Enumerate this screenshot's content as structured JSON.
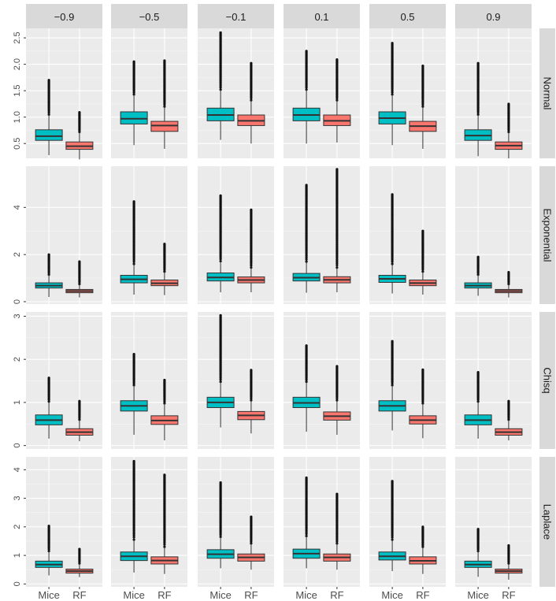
{
  "chart_data": {
    "type": "boxplot",
    "title": "",
    "xlabel": "",
    "ylabel": "",
    "facet_cols": [
      "−0.9",
      "−0.5",
      "−0.1",
      "0.1",
      "0.5",
      "0.9"
    ],
    "facet_rows": [
      "Normal",
      "Exponential",
      "Chisq",
      "Laplace"
    ],
    "categories": [
      "Mice",
      "RF"
    ],
    "colors": {
      "Mice": "#00BFC4",
      "RF": "#F8766D"
    },
    "grid": true,
    "legend": "none",
    "rows": [
      {
        "name": "Normal",
        "ylim": [
          0.22,
          2.68
        ],
        "yticks": [
          0.5,
          1.0,
          1.5,
          2.0,
          2.5
        ],
        "yticklabels": [
          "0.5",
          "1.0",
          "1.5",
          "2.0",
          "2.5"
        ],
        "panels": [
          {
            "Mice": {
              "min": 0.28,
              "q1": 0.56,
              "median": 0.64,
              "q3": 0.76,
              "max": 1.05,
              "out_max": 1.7
            },
            "RF": {
              "min": 0.2,
              "q1": 0.39,
              "median": 0.45,
              "q3": 0.53,
              "max": 0.72,
              "out_max": 1.09
            }
          },
          {
            "Mice": {
              "min": 0.47,
              "q1": 0.87,
              "median": 0.97,
              "q3": 1.1,
              "max": 1.43,
              "out_max": 2.05
            },
            "RF": {
              "min": 0.4,
              "q1": 0.73,
              "median": 0.84,
              "q3": 0.92,
              "max": 1.2,
              "out_max": 2.07
            }
          },
          {
            "Mice": {
              "min": 0.57,
              "q1": 0.93,
              "median": 1.04,
              "q3": 1.17,
              "max": 1.52,
              "out_max": 2.6
            },
            "RF": {
              "min": 0.5,
              "q1": 0.84,
              "median": 0.93,
              "q3": 1.04,
              "max": 1.32,
              "out_max": 2.02
            }
          },
          {
            "Mice": {
              "min": 0.5,
              "q1": 0.93,
              "median": 1.04,
              "q3": 1.17,
              "max": 1.52,
              "out_max": 2.25
            },
            "RF": {
              "min": 0.52,
              "q1": 0.84,
              "median": 0.93,
              "q3": 1.04,
              "max": 1.32,
              "out_max": 2.09
            }
          },
          {
            "Mice": {
              "min": 0.47,
              "q1": 0.87,
              "median": 0.98,
              "q3": 1.1,
              "max": 1.43,
              "out_max": 2.4
            },
            "RF": {
              "min": 0.4,
              "q1": 0.73,
              "median": 0.83,
              "q3": 0.92,
              "max": 1.2,
              "out_max": 1.97
            }
          },
          {
            "Mice": {
              "min": 0.26,
              "q1": 0.56,
              "median": 0.65,
              "q3": 0.76,
              "max": 1.05,
              "out_max": 2.02
            },
            "RF": {
              "min": 0.22,
              "q1": 0.39,
              "median": 0.46,
              "q3": 0.53,
              "max": 0.72,
              "out_max": 1.25
            }
          }
        ]
      },
      {
        "name": "Exponential",
        "ylim": [
          -0.1,
          5.75
        ],
        "yticks": [
          0,
          2,
          4
        ],
        "yticklabels": [
          "0",
          "2",
          "4"
        ],
        "panels": [
          {
            "Mice": {
              "min": 0.2,
              "q1": 0.58,
              "median": 0.68,
              "q3": 0.8,
              "max": 1.15,
              "out_max": 2.0
            },
            "RF": {
              "min": 0.18,
              "q1": 0.38,
              "median": 0.45,
              "q3": 0.52,
              "max": 0.75,
              "out_max": 1.7
            }
          },
          {
            "Mice": {
              "min": 0.3,
              "q1": 0.8,
              "median": 0.95,
              "q3": 1.12,
              "max": 1.6,
              "out_max": 4.25
            },
            "RF": {
              "min": 0.28,
              "q1": 0.68,
              "median": 0.78,
              "q3": 0.92,
              "max": 1.28,
              "out_max": 2.45
            }
          },
          {
            "Mice": {
              "min": 0.4,
              "q1": 0.88,
              "median": 1.03,
              "q3": 1.22,
              "max": 1.72,
              "out_max": 4.5
            },
            "RF": {
              "min": 0.4,
              "q1": 0.8,
              "median": 0.92,
              "q3": 1.05,
              "max": 1.45,
              "out_max": 3.9
            }
          },
          {
            "Mice": {
              "min": 0.38,
              "q1": 0.88,
              "median": 1.02,
              "q3": 1.2,
              "max": 1.7,
              "out_max": 4.95
            },
            "RF": {
              "min": 0.4,
              "q1": 0.8,
              "median": 0.93,
              "q3": 1.06,
              "max": 1.45,
              "out_max": 5.62
            }
          },
          {
            "Mice": {
              "min": 0.35,
              "q1": 0.82,
              "median": 0.97,
              "q3": 1.12,
              "max": 1.6,
              "out_max": 4.55
            },
            "RF": {
              "min": 0.3,
              "q1": 0.68,
              "median": 0.79,
              "q3": 0.92,
              "max": 1.28,
              "out_max": 3.0
            }
          },
          {
            "Mice": {
              "min": 0.25,
              "q1": 0.58,
              "median": 0.68,
              "q3": 0.8,
              "max": 1.15,
              "out_max": 1.9
            },
            "RF": {
              "min": 0.18,
              "q1": 0.38,
              "median": 0.45,
              "q3": 0.52,
              "max": 0.75,
              "out_max": 1.25
            }
          }
        ]
      },
      {
        "name": "Chisq",
        "ylim": [
          -0.08,
          3.1
        ],
        "yticks": [
          0,
          1,
          2,
          3
        ],
        "yticklabels": [
          "0",
          "1",
          "2",
          "3"
        ],
        "panels": [
          {
            "Mice": {
              "min": 0.16,
              "q1": 0.48,
              "median": 0.59,
              "q3": 0.71,
              "max": 1.02,
              "out_max": 1.57
            },
            "RF": {
              "min": 0.1,
              "q1": 0.24,
              "median": 0.31,
              "q3": 0.39,
              "max": 0.6,
              "out_max": 1.03
            }
          },
          {
            "Mice": {
              "min": 0.25,
              "q1": 0.8,
              "median": 0.92,
              "q3": 1.04,
              "max": 1.4,
              "out_max": 2.12
            },
            "RF": {
              "min": 0.12,
              "q1": 0.49,
              "median": 0.58,
              "q3": 0.69,
              "max": 0.98,
              "out_max": 1.52
            }
          },
          {
            "Mice": {
              "min": 0.42,
              "q1": 0.88,
              "median": 1.0,
              "q3": 1.12,
              "max": 1.48,
              "out_max": 3.02
            },
            "RF": {
              "min": 0.28,
              "q1": 0.6,
              "median": 0.7,
              "q3": 0.79,
              "max": 1.05,
              "out_max": 1.75
            }
          },
          {
            "Mice": {
              "min": 0.32,
              "q1": 0.88,
              "median": 0.99,
              "q3": 1.12,
              "max": 1.48,
              "out_max": 2.32
            },
            "RF": {
              "min": 0.25,
              "q1": 0.59,
              "median": 0.68,
              "q3": 0.78,
              "max": 1.05,
              "out_max": 1.84
            }
          },
          {
            "Mice": {
              "min": 0.35,
              "q1": 0.8,
              "median": 0.92,
              "q3": 1.04,
              "max": 1.4,
              "out_max": 2.42
            },
            "RF": {
              "min": 0.17,
              "q1": 0.5,
              "median": 0.59,
              "q3": 0.69,
              "max": 0.98,
              "out_max": 1.76
            }
          },
          {
            "Mice": {
              "min": 0.16,
              "q1": 0.48,
              "median": 0.59,
              "q3": 0.71,
              "max": 1.02,
              "out_max": 1.7
            },
            "RF": {
              "min": 0.12,
              "q1": 0.24,
              "median": 0.31,
              "q3": 0.39,
              "max": 0.6,
              "out_max": 1.03
            }
          }
        ]
      },
      {
        "name": "Laplace",
        "ylim": [
          -0.1,
          4.45
        ],
        "yticks": [
          0,
          1,
          2,
          3,
          4
        ],
        "yticklabels": [
          "0",
          "1",
          "2",
          "3",
          "4"
        ],
        "panels": [
          {
            "Mice": {
              "min": 0.3,
              "q1": 0.58,
              "median": 0.68,
              "q3": 0.8,
              "max": 1.15,
              "out_max": 2.03
            },
            "RF": {
              "min": 0.24,
              "q1": 0.38,
              "median": 0.45,
              "q3": 0.52,
              "max": 0.72,
              "out_max": 1.22
            }
          },
          {
            "Mice": {
              "min": 0.4,
              "q1": 0.82,
              "median": 0.97,
              "q3": 1.12,
              "max": 1.55,
              "out_max": 4.3
            },
            "RF": {
              "min": 0.35,
              "q1": 0.7,
              "median": 0.82,
              "q3": 0.95,
              "max": 1.3,
              "out_max": 3.82
            }
          },
          {
            "Mice": {
              "min": 0.55,
              "q1": 0.9,
              "median": 1.04,
              "q3": 1.2,
              "max": 1.65,
              "out_max": 3.55
            },
            "RF": {
              "min": 0.5,
              "q1": 0.8,
              "median": 0.93,
              "q3": 1.05,
              "max": 1.42,
              "out_max": 2.35
            }
          },
          {
            "Mice": {
              "min": 0.55,
              "q1": 0.9,
              "median": 1.06,
              "q3": 1.22,
              "max": 1.68,
              "out_max": 3.72
            },
            "RF": {
              "min": 0.5,
              "q1": 0.8,
              "median": 0.93,
              "q3": 1.05,
              "max": 1.42,
              "out_max": 3.15
            }
          },
          {
            "Mice": {
              "min": 0.45,
              "q1": 0.84,
              "median": 0.97,
              "q3": 1.12,
              "max": 1.55,
              "out_max": 3.6
            },
            "RF": {
              "min": 0.35,
              "q1": 0.7,
              "median": 0.81,
              "q3": 0.95,
              "max": 1.3,
              "out_max": 2.0
            }
          },
          {
            "Mice": {
              "min": 0.25,
              "q1": 0.58,
              "median": 0.68,
              "q3": 0.8,
              "max": 1.15,
              "out_max": 1.92
            },
            "RF": {
              "min": 0.15,
              "q1": 0.38,
              "median": 0.45,
              "q3": 0.52,
              "max": 0.72,
              "out_max": 1.35
            }
          }
        ]
      }
    ]
  }
}
